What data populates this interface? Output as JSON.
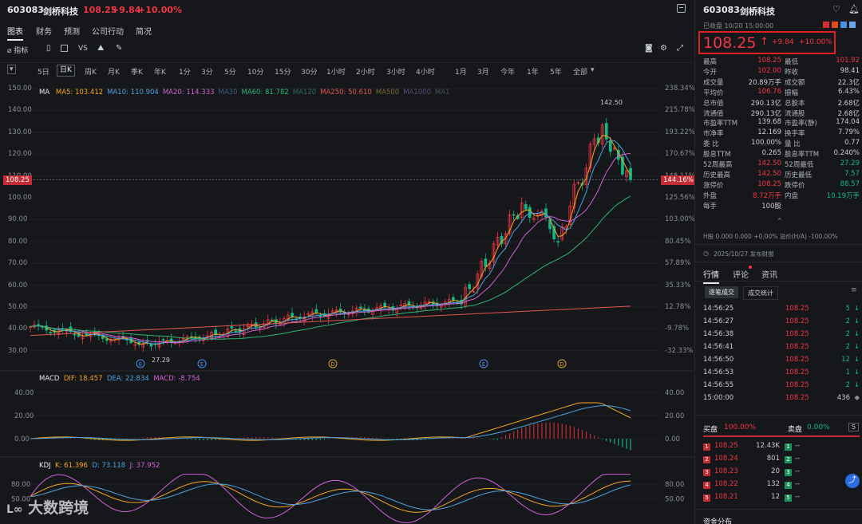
{
  "header": {
    "code": "603083",
    "name": "剑桥科技",
    "price": "108.25",
    "change": "+9.84",
    "change_pct": "+10.00%"
  },
  "tabs": [
    "图表",
    "财务",
    "预测",
    "公司行动",
    "简况"
  ],
  "toolbar": {
    "indicator_label": "指标",
    "vs_label": "VS"
  },
  "periods": [
    "5日",
    "日K",
    "周K",
    "月K",
    "季K",
    "年K",
    "1分",
    "3分",
    "5分",
    "10分",
    "15分",
    "30分",
    "1小时",
    "2小时",
    "3小时",
    "4小时",
    "1月",
    "3月",
    "今年",
    "1年",
    "5年",
    "全部"
  ],
  "active_period": "日K",
  "price_axis": [
    "150.00",
    "140.00",
    "130.00",
    "120.00",
    "110.00",
    "100.00",
    "90.00",
    "80.00",
    "70.00",
    "60.00",
    "50.00",
    "40.00",
    "30.00"
  ],
  "pct_axis": [
    "238.34%",
    "215.78%",
    "193.22%",
    "170.67%",
    "148.11%",
    "125.56%",
    "103.00%",
    "80.45%",
    "57.89%",
    "35.33%",
    "12.78%",
    "-9.78%",
    "-32.33%"
  ],
  "price_tag": "108.25",
  "pct_tag": "144.16%",
  "ma_legend": {
    "title": "MA",
    "items": [
      {
        "text": "MA5: 103.412",
        "color": "#f5a623"
      },
      {
        "text": "MA10: 110.904",
        "color": "#4ba3e3"
      },
      {
        "text": "MA20: 114.333",
        "color": "#d062d6"
      },
      {
        "text": "MA30",
        "color": "#3d5a80"
      },
      {
        "text": "MA60: 81.782",
        "color": "#2bb673"
      },
      {
        "text": "MA120",
        "color": "#2a6b5a"
      },
      {
        "text": "MA250: 50.610",
        "color": "#e0584f"
      },
      {
        "text": "MA500",
        "color": "#7a6a30"
      },
      {
        "text": "MA1000",
        "color": "#5a4a7a"
      },
      {
        "text": "MA1",
        "color": "#4a4f58"
      }
    ]
  },
  "annotations": {
    "high": "142.50",
    "low": "27.29"
  },
  "event_markers": [
    "E",
    "E",
    "D",
    "E",
    "D"
  ],
  "macd": {
    "title": "MACD",
    "dif": "DIF: 18.457",
    "dea": "DEA: 22.834",
    "macd": "MACD: -8.754",
    "axis": [
      "40.00",
      "20.00",
      "0.00"
    ]
  },
  "kdj": {
    "title": "KDJ",
    "k": "K: 61.396",
    "d": "D: 73.118",
    "j": "J: 37.952",
    "axis": [
      "80.00",
      "50.00"
    ]
  },
  "watermark": "大数跨境",
  "right": {
    "code": "603083",
    "name": "剑桥科技",
    "status": "已收盘 10/20 15:00:00",
    "price": "108.25",
    "change": "+9.84",
    "change_pct": "+10.00%",
    "stats": [
      [
        "最高",
        "108.25",
        "最低",
        "101.92"
      ],
      [
        "今开",
        "102.00",
        "昨收",
        "98.41"
      ],
      [
        "成交量",
        "20.89万手",
        "成交额",
        "22.3亿"
      ],
      [
        "平均价",
        "106.76",
        "振幅",
        "6.43%"
      ],
      [
        "总市值",
        "290.13亿",
        "总股本",
        "2.68亿"
      ],
      [
        "流通值",
        "290.13亿",
        "流通股",
        "2.68亿"
      ],
      [
        "市盈率TTM",
        "139.68",
        "市盈率(静)",
        "174.04"
      ],
      [
        "市净率",
        "12.169",
        "换手率",
        "7.79%"
      ],
      [
        "委 比",
        "100.00%",
        "量 比",
        "0.77"
      ],
      [
        "股息TTM",
        "0.265",
        "股息率TTM",
        "0.240%"
      ],
      [
        "52周最高",
        "142.50",
        "52周最低",
        "27.29"
      ],
      [
        "历史最高",
        "142.50",
        "历史最低",
        "7.57"
      ],
      [
        "涨停价",
        "108.25",
        "跌停价",
        "88.57"
      ],
      [
        "外盘",
        "8.72万手",
        "内盘",
        "10.19万手"
      ],
      [
        "每手",
        "100股",
        "",
        ""
      ]
    ],
    "hk_line": "H股  0.000  0.000  +0.00%  溢价(H/A)  -100.00%",
    "report_notice": "2025/10/27 发布财报",
    "subtabs": [
      "行情",
      "评论",
      "资讯"
    ],
    "trade_tabs": [
      "逐笔成交",
      "成交统计"
    ],
    "trades": [
      [
        "14:56:25",
        "108.25",
        "5"
      ],
      [
        "14:56:27",
        "108.25",
        "2"
      ],
      [
        "14:56:38",
        "108.25",
        "2"
      ],
      [
        "14:56:41",
        "108.25",
        "2"
      ],
      [
        "14:56:50",
        "108.25",
        "12"
      ],
      [
        "14:56:53",
        "108.25",
        "1"
      ],
      [
        "14:56:55",
        "108.25",
        "2"
      ],
      [
        "15:00:00",
        "108.25",
        "436"
      ]
    ],
    "bid_label": "买盘",
    "bid_pct": "100.00%",
    "ask_label": "卖盘",
    "ask_pct": "0.00%",
    "ask_count": "5",
    "book": [
      [
        "1",
        "108.25",
        "12.43K",
        "1",
        "--"
      ],
      [
        "2",
        "108.24",
        "801",
        "2",
        "--"
      ],
      [
        "3",
        "108.23",
        "20",
        "3",
        "--"
      ],
      [
        "4",
        "108.22",
        "132",
        "4",
        "--"
      ],
      [
        "5",
        "108.21",
        "12",
        "5",
        "--"
      ]
    ],
    "fund_label": "资金分布"
  },
  "colors": {
    "up": "#f23645",
    "down": "#12b886",
    "bg": "#16171a"
  }
}
